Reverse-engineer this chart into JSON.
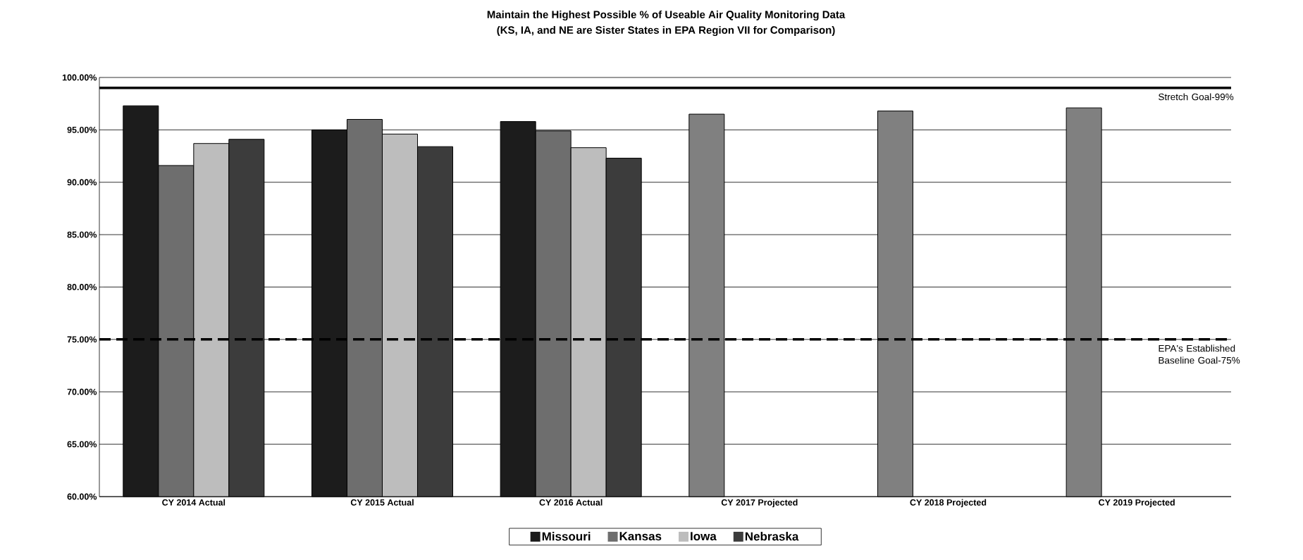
{
  "chart_data": {
    "type": "bar",
    "title": "Maintain the Highest Possible % of Useable Air Quality Monitoring Data",
    "subtitle": "(KS, IA, and NE are Sister States in EPA Region VII for Comparison)",
    "categories": [
      "CY 2014 Actual",
      "CY 2015 Actual",
      "CY 2016 Actual",
      "CY 2017 Projected",
      "CY 2018 Projected",
      "CY 2019 Projected"
    ],
    "series": [
      {
        "name": "Missouri",
        "color": "#1c1c1c",
        "values": [
          97.3,
          95.0,
          95.8,
          null,
          null,
          null
        ]
      },
      {
        "name": "Kansas",
        "color": "#6e6e6e",
        "values": [
          91.6,
          96.0,
          94.9,
          null,
          null,
          null
        ]
      },
      {
        "name": "Iowa",
        "color": "#bdbdbd",
        "values": [
          93.7,
          94.6,
          93.3,
          null,
          null,
          null
        ]
      },
      {
        "name": "Nebraska",
        "color": "#3c3c3c",
        "values": [
          94.1,
          93.4,
          92.3,
          null,
          null,
          null
        ]
      },
      {
        "color": "#808080",
        "values": [
          null,
          null,
          null,
          96.5,
          96.8,
          97.1
        ]
      }
    ],
    "ylim": [
      60,
      100
    ],
    "yticks": [
      {
        "value": 60,
        "label": "60.00%"
      },
      {
        "value": 65,
        "label": "65.00%"
      },
      {
        "value": 70,
        "label": "70.00%"
      },
      {
        "value": 75,
        "label": "75.00%"
      },
      {
        "value": 80,
        "label": "80.00%"
      },
      {
        "value": 85,
        "label": "85.00%"
      },
      {
        "value": 90,
        "label": "90.00%"
      },
      {
        "value": 95,
        "label": "95.00%"
      },
      {
        "value": 100,
        "label": "100.00%"
      }
    ],
    "ref_lines": [
      {
        "axis": "y",
        "value": 99,
        "label": "Stretch Goal-99%",
        "color": "#000000",
        "line_style": "solid"
      },
      {
        "axis": "y",
        "value": 75,
        "label": "EPA's Established Baseline Goal-75%",
        "color": "#000000",
        "line_style": "dashed"
      }
    ],
    "grid": "y",
    "legend": "bottom"
  }
}
